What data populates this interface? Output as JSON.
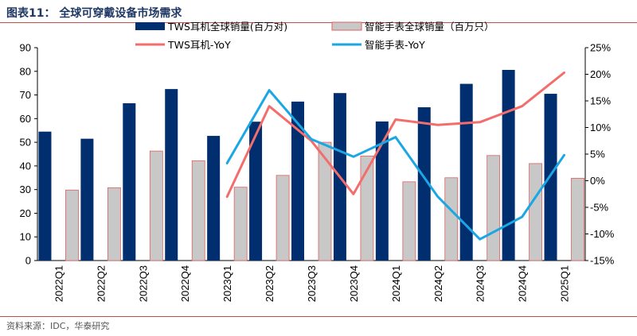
{
  "header": {
    "title": "图表11：  全球可穿戴设备市场需求"
  },
  "footer": {
    "source": "资料来源：IDC，华泰研究"
  },
  "chart_data": {
    "type": "bar",
    "categories": [
      "2022Q1",
      "2022Q2",
      "2022Q3",
      "2022Q4",
      "2023Q1",
      "2023Q2",
      "2023Q3",
      "2023Q4",
      "2024Q1",
      "2024Q2",
      "2024Q3",
      "2024Q4",
      "2025Q1"
    ],
    "series": [
      {
        "name": "TWS耳机全球销量(百万对)",
        "type": "bar",
        "axis": "left",
        "color": "#002e6e",
        "values": [
          54.5,
          51.5,
          66.5,
          72.5,
          52.7,
          58.7,
          67.2,
          70.8,
          58.8,
          64.8,
          74.7,
          80.6,
          70.5
        ]
      },
      {
        "name": "智能手表全球销量（百万只）",
        "type": "bar",
        "axis": "left",
        "color": "#c8c8c8",
        "edge": "#e06060",
        "values": [
          29.8,
          30.8,
          46.3,
          42.2,
          31.0,
          36.0,
          50.0,
          44.2,
          33.3,
          35.0,
          44.4,
          41.0,
          34.8
        ]
      },
      {
        "name": "TWS耳机-YoY",
        "type": "line",
        "axis": "right",
        "color": "#f36d6d",
        "values": [
          null,
          null,
          null,
          null,
          -3.0,
          14.0,
          7.5,
          -2.5,
          11.5,
          10.5,
          11.0,
          14.0,
          20.3
        ]
      },
      {
        "name": "智能手表-YoY",
        "type": "line",
        "axis": "right",
        "color": "#1aa7e3",
        "values": [
          null,
          null,
          null,
          null,
          3.3,
          17.0,
          7.8,
          4.5,
          8.2,
          -3.0,
          -11.0,
          -6.8,
          4.8
        ]
      }
    ],
    "yleft": {
      "min": 0,
      "max": 90,
      "step": 10,
      "ticks": [
        "0",
        "10",
        "20",
        "30",
        "40",
        "50",
        "60",
        "70",
        "80",
        "90"
      ]
    },
    "yright": {
      "min": -15,
      "max": 25,
      "step": 5,
      "ticks": [
        "-15%",
        "-10%",
        "-5%",
        "0%",
        "5%",
        "10%",
        "15%",
        "20%",
        "25%"
      ]
    },
    "legend_position": "top",
    "grid": false
  }
}
